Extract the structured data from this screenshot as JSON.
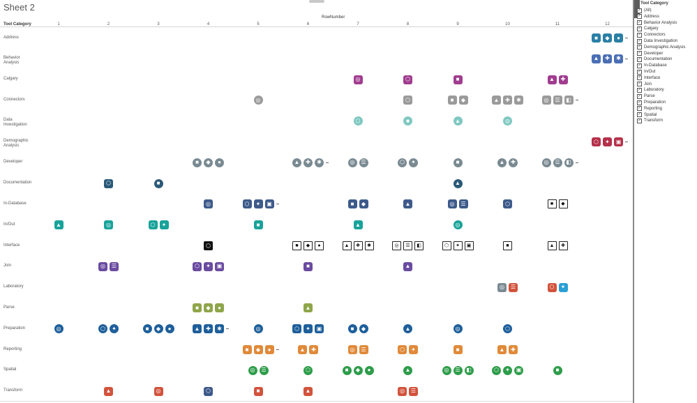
{
  "sheet": {
    "title": "Sheet 2"
  },
  "axes": {
    "column_header": "RowNumber",
    "row_header": "Tool Category",
    "columns": [
      "1",
      "2",
      "3",
      "4",
      "5",
      "6",
      "7",
      "8",
      "9",
      "10",
      "11",
      "12"
    ]
  },
  "categories": [
    "Address",
    "Behavior Analysis",
    "Calgary",
    "Connectors",
    "Data Investigation",
    "Demographic Analysis",
    "Developer",
    "Documentation",
    "In-Database",
    "In/Out",
    "Interface",
    "Join",
    "Laboratory",
    "Parse",
    "Preparation",
    "Reporting",
    "Spatial",
    "Transform"
  ],
  "row_labels": [
    "Address",
    "Behavior\nAnalysis",
    "Calgary",
    "Connectors",
    "Data\nInvestigation",
    "Demographic\nAnalysis",
    "Developer",
    "Documentation",
    "In-Database",
    "In/Out",
    "Interface",
    "Join",
    "Laboratory",
    "Parse",
    "Preparation",
    "Reporting",
    "Spatial",
    "Transform"
  ],
  "colors": {
    "Address": "#2a7fa6",
    "Behavior Analysis": "#4a6fb5",
    "Calgary": "#a13d8f",
    "Connectors": "#9a9a9a",
    "Data Investigation": "#7ec8c1",
    "Demographic Analysis": "#b5304a",
    "Developer": "#7a8a92",
    "Documentation": "#2b5a78",
    "In-Database": "#3d5a8a",
    "In/Out": "#18a39a",
    "Interface": "#111111",
    "Join": "#6a4ba0",
    "Laboratory": "#2a9fd6",
    "Parse": "#8fa54a",
    "Preparation": "#1e5f9b",
    "Reporting": "#e08a3a",
    "Spatial": "#2e9d4a",
    "Transform": "#d2533c"
  },
  "filter": {
    "title": "Tool Category",
    "items": [
      {
        "label": "(All)",
        "checked": true
      },
      {
        "label": "Address",
        "checked": true
      },
      {
        "label": "Behavior Analysis",
        "checked": true
      },
      {
        "label": "Calgary",
        "checked": true
      },
      {
        "label": "Connectors",
        "checked": true
      },
      {
        "label": "Data Investigation",
        "checked": true
      },
      {
        "label": "Demographic Analysis",
        "checked": true
      },
      {
        "label": "Developer",
        "checked": true
      },
      {
        "label": "Documentation",
        "checked": true
      },
      {
        "label": "In-Database",
        "checked": true
      },
      {
        "label": "In/Out",
        "checked": true
      },
      {
        "label": "Interface",
        "checked": true
      },
      {
        "label": "Join",
        "checked": true
      },
      {
        "label": "Laboratory",
        "checked": true
      },
      {
        "label": "Parse",
        "checked": true
      },
      {
        "label": "Preparation",
        "checked": true
      },
      {
        "label": "Reporting",
        "checked": true
      },
      {
        "label": "Spatial",
        "checked": true
      },
      {
        "label": "Transform",
        "checked": true
      }
    ]
  },
  "tools": [
    {
      "cat": "Address",
      "col": 12,
      "icons": [
        "tool-icon",
        "tool-icon",
        "tool-icon"
      ],
      "more": true
    },
    {
      "cat": "Behavior Analysis",
      "col": 12,
      "icons": [
        "tool-icon",
        "tool-icon",
        "tool-icon"
      ],
      "more": true
    },
    {
      "cat": "Calgary",
      "col": 7,
      "icons": [
        "tool-icon"
      ]
    },
    {
      "cat": "Calgary",
      "col": 8,
      "icons": [
        "tool-icon"
      ]
    },
    {
      "cat": "Calgary",
      "col": 9,
      "icons": [
        "tool-icon"
      ]
    },
    {
      "cat": "Calgary",
      "col": 11,
      "icons": [
        "tool-icon",
        "tool-icon"
      ]
    },
    {
      "cat": "Connectors",
      "col": 5,
      "icons": [
        "tool-icon"
      ],
      "shape": "round"
    },
    {
      "cat": "Connectors",
      "col": 8,
      "icons": [
        "tool-icon"
      ]
    },
    {
      "cat": "Connectors",
      "col": 9,
      "icons": [
        "tool-icon",
        "tool-icon"
      ]
    },
    {
      "cat": "Connectors",
      "col": 10,
      "icons": [
        "tool-icon",
        "tool-icon",
        "tool-icon"
      ]
    },
    {
      "cat": "Connectors",
      "col": 11,
      "icons": [
        "tool-icon",
        "tool-icon",
        "tool-icon"
      ],
      "more": true
    },
    {
      "cat": "Data Investigation",
      "col": 7,
      "icons": [
        "tool-icon"
      ],
      "shape": "round"
    },
    {
      "cat": "Data Investigation",
      "col": 8,
      "icons": [
        "tool-icon"
      ],
      "shape": "round"
    },
    {
      "cat": "Data Investigation",
      "col": 9,
      "icons": [
        "tool-icon"
      ],
      "shape": "round"
    },
    {
      "cat": "Data Investigation",
      "col": 10,
      "icons": [
        "tool-icon"
      ],
      "shape": "round"
    },
    {
      "cat": "Demographic Analysis",
      "col": 12,
      "icons": [
        "tool-icon",
        "tool-icon",
        "tool-icon"
      ],
      "more": true
    },
    {
      "cat": "Developer",
      "col": 4,
      "icons": [
        "tool-icon",
        "tool-icon",
        "tool-icon"
      ],
      "shape": "round"
    },
    {
      "cat": "Developer",
      "col": 6,
      "icons": [
        "tool-icon",
        "tool-icon",
        "tool-icon"
      ],
      "shape": "round",
      "more": true
    },
    {
      "cat": "Developer",
      "col": 7,
      "icons": [
        "tool-icon",
        "tool-icon"
      ],
      "shape": "round"
    },
    {
      "cat": "Developer",
      "col": 8,
      "icons": [
        "tool-icon",
        "tool-icon"
      ],
      "shape": "round"
    },
    {
      "cat": "Developer",
      "col": 9,
      "icons": [
        "tool-icon"
      ],
      "shape": "round"
    },
    {
      "cat": "Developer",
      "col": 10,
      "icons": [
        "tool-icon",
        "tool-icon"
      ],
      "shape": "round"
    },
    {
      "cat": "Developer",
      "col": 11,
      "icons": [
        "tool-icon",
        "tool-icon",
        "tool-icon"
      ],
      "shape": "round",
      "more": true
    },
    {
      "cat": "Documentation",
      "col": 2,
      "icons": [
        "tool-icon"
      ]
    },
    {
      "cat": "Documentation",
      "col": 3,
      "icons": [
        "tool-icon"
      ],
      "shape": "round"
    },
    {
      "cat": "Documentation",
      "col": 9,
      "icons": [
        "tool-icon"
      ],
      "shape": "round"
    },
    {
      "cat": "In-Database",
      "col": 4,
      "icons": [
        "tool-icon"
      ]
    },
    {
      "cat": "In-Database",
      "col": 5,
      "icons": [
        "tool-icon",
        "tool-icon",
        "tool-icon"
      ],
      "more": true
    },
    {
      "cat": "In-Database",
      "col": 7,
      "icons": [
        "tool-icon",
        "tool-icon"
      ]
    },
    {
      "cat": "In-Database",
      "col": 8,
      "icons": [
        "tool-icon"
      ]
    },
    {
      "cat": "In-Database",
      "col": 9,
      "icons": [
        "tool-icon",
        "tool-icon"
      ]
    },
    {
      "cat": "In-Database",
      "col": 10,
      "icons": [
        "tool-icon"
      ]
    },
    {
      "cat": "In-Database",
      "col": 11,
      "icons": [
        "tool-icon",
        "tool-icon"
      ],
      "shape": "outline"
    },
    {
      "cat": "In/Out",
      "col": 1,
      "icons": [
        "tool-icon"
      ]
    },
    {
      "cat": "In/Out",
      "col": 2,
      "icons": [
        "tool-icon"
      ]
    },
    {
      "cat": "In/Out",
      "col": 3,
      "icons": [
        "tool-icon",
        "tool-icon"
      ]
    },
    {
      "cat": "In/Out",
      "col": 5,
      "icons": [
        "tool-icon"
      ]
    },
    {
      "cat": "In/Out",
      "col": 7,
      "icons": [
        "tool-icon"
      ]
    },
    {
      "cat": "In/Out",
      "col": 9,
      "icons": [
        "tool-icon"
      ],
      "shape": "round"
    },
    {
      "cat": "Interface",
      "col": 4,
      "icons": [
        "tool-icon"
      ],
      "shape": "filled-dark"
    },
    {
      "cat": "Interface",
      "col": 6,
      "icons": [
        "tool-icon",
        "tool-icon",
        "tool-icon"
      ],
      "shape": "outline"
    },
    {
      "cat": "Interface",
      "col": 7,
      "icons": [
        "tool-icon",
        "tool-icon",
        "tool-icon"
      ],
      "shape": "outline"
    },
    {
      "cat": "Interface",
      "col": 8,
      "icons": [
        "tool-icon",
        "tool-icon",
        "tool-icon"
      ],
      "shape": "outline"
    },
    {
      "cat": "Interface",
      "col": 9,
      "icons": [
        "tool-icon",
        "tool-icon",
        "tool-icon"
      ],
      "shape": "outline"
    },
    {
      "cat": "Interface",
      "col": 10,
      "icons": [
        "tool-icon"
      ],
      "shape": "outline"
    },
    {
      "cat": "Interface",
      "col": 11,
      "icons": [
        "tool-icon",
        "tool-icon"
      ],
      "shape": "outline"
    },
    {
      "cat": "Join",
      "col": 2,
      "icons": [
        "tool-icon",
        "tool-icon"
      ]
    },
    {
      "cat": "Join",
      "col": 4,
      "icons": [
        "tool-icon",
        "tool-icon",
        "tool-icon"
      ]
    },
    {
      "cat": "Join",
      "col": 6,
      "icons": [
        "tool-icon"
      ]
    },
    {
      "cat": "Join",
      "col": 8,
      "icons": [
        "tool-icon"
      ]
    },
    {
      "cat": "Laboratory",
      "col": 10,
      "icons": [
        "tool-icon",
        "tool-icon"
      ],
      "override": [
        "#7a8a92",
        "#d2533c"
      ]
    },
    {
      "cat": "Laboratory",
      "col": 11,
      "icons": [
        "tool-icon",
        "tool-icon"
      ],
      "override": [
        "#d2533c",
        "#2a9fd6"
      ]
    },
    {
      "cat": "Parse",
      "col": 4,
      "icons": [
        "tool-icon",
        "tool-icon",
        "tool-icon"
      ]
    },
    {
      "cat": "Parse",
      "col": 6,
      "icons": [
        "tool-icon"
      ]
    },
    {
      "cat": "Preparation",
      "col": 1,
      "icons": [
        "tool-icon"
      ],
      "shape": "round"
    },
    {
      "cat": "Preparation",
      "col": 2,
      "icons": [
        "tool-icon",
        "tool-icon"
      ],
      "shape": "round"
    },
    {
      "cat": "Preparation",
      "col": 3,
      "icons": [
        "tool-icon",
        "tool-icon",
        "tool-icon"
      ],
      "shape": "round"
    },
    {
      "cat": "Preparation",
      "col": 4,
      "icons": [
        "tool-icon",
        "tool-icon",
        "tool-icon"
      ],
      "more": true
    },
    {
      "cat": "Preparation",
      "col": 5,
      "icons": [
        "tool-icon"
      ],
      "shape": "round"
    },
    {
      "cat": "Preparation",
      "col": 6,
      "icons": [
        "tool-icon",
        "tool-icon",
        "tool-icon"
      ]
    },
    {
      "cat": "Preparation",
      "col": 7,
      "icons": [
        "tool-icon",
        "tool-icon"
      ],
      "shape": "round"
    },
    {
      "cat": "Preparation",
      "col": 8,
      "icons": [
        "tool-icon"
      ],
      "shape": "round"
    },
    {
      "cat": "Preparation",
      "col": 9,
      "icons": [
        "tool-icon"
      ],
      "shape": "round"
    },
    {
      "cat": "Preparation",
      "col": 10,
      "icons": [
        "tool-icon"
      ],
      "shape": "round"
    },
    {
      "cat": "Reporting",
      "col": 5,
      "icons": [
        "tool-icon",
        "tool-icon",
        "tool-icon"
      ],
      "more": true
    },
    {
      "cat": "Reporting",
      "col": 6,
      "icons": [
        "tool-icon",
        "tool-icon"
      ]
    },
    {
      "cat": "Reporting",
      "col": 7,
      "icons": [
        "tool-icon",
        "tool-icon"
      ]
    },
    {
      "cat": "Reporting",
      "col": 8,
      "icons": [
        "tool-icon",
        "tool-icon"
      ]
    },
    {
      "cat": "Reporting",
      "col": 9,
      "icons": [
        "tool-icon"
      ]
    },
    {
      "cat": "Reporting",
      "col": 10,
      "icons": [
        "tool-icon",
        "tool-icon"
      ]
    },
    {
      "cat": "Spatial",
      "col": 5,
      "icons": [
        "tool-icon",
        "tool-icon"
      ],
      "shape": "round"
    },
    {
      "cat": "Spatial",
      "col": 6,
      "icons": [
        "tool-icon"
      ],
      "shape": "round"
    },
    {
      "cat": "Spatial",
      "col": 7,
      "icons": [
        "tool-icon",
        "tool-icon",
        "tool-icon"
      ],
      "shape": "round"
    },
    {
      "cat": "Spatial",
      "col": 8,
      "icons": [
        "tool-icon"
      ],
      "shape": "round"
    },
    {
      "cat": "Spatial",
      "col": 9,
      "icons": [
        "tool-icon",
        "tool-icon",
        "tool-icon"
      ],
      "shape": "round"
    },
    {
      "cat": "Spatial",
      "col": 10,
      "icons": [
        "tool-icon",
        "tool-icon",
        "tool-icon"
      ],
      "shape": "round"
    },
    {
      "cat": "Spatial",
      "col": 11,
      "icons": [
        "tool-icon"
      ],
      "shape": "round"
    },
    {
      "cat": "Transform",
      "col": 2,
      "icons": [
        "tool-icon"
      ]
    },
    {
      "cat": "Transform",
      "col": 3,
      "icons": [
        "tool-icon"
      ]
    },
    {
      "cat": "Transform",
      "col": 4,
      "icons": [
        "tool-icon"
      ],
      "override": [
        "#3d5a8a"
      ]
    },
    {
      "cat": "Transform",
      "col": 5,
      "icons": [
        "tool-icon"
      ]
    },
    {
      "cat": "Transform",
      "col": 6,
      "icons": [
        "tool-icon"
      ]
    },
    {
      "cat": "Transform",
      "col": 8,
      "icons": [
        "tool-icon",
        "tool-icon"
      ]
    }
  ]
}
